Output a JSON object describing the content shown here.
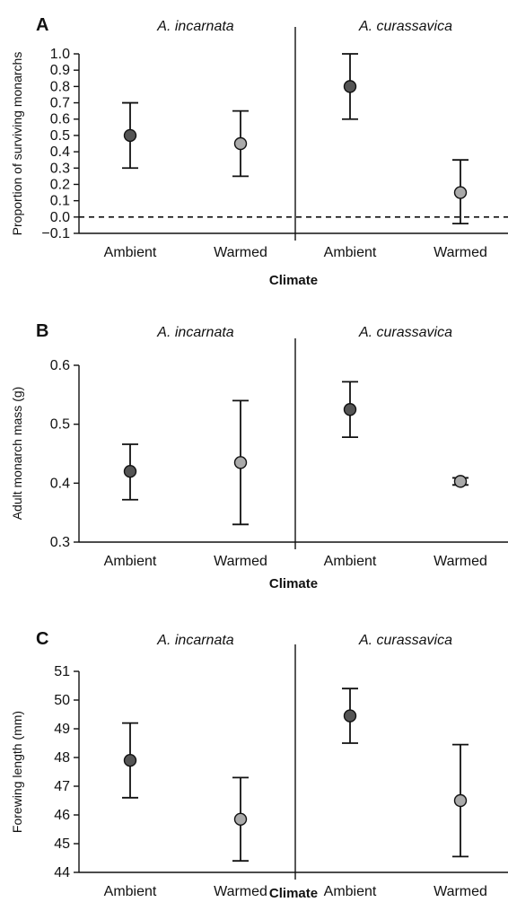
{
  "chart_data": [
    {
      "type": "scatter",
      "panel_label": "A",
      "group_labels": [
        "A. incarnata",
        "A. curassavica"
      ],
      "categories": [
        "Ambient",
        "Warmed",
        "Ambient",
        "Warmed"
      ],
      "xlabel": "Climate",
      "ylabel": "Proportion of surviving monarchs",
      "ylim": [
        -0.1,
        1.0
      ],
      "yticks": [
        "1.0",
        "0.9",
        "0.8",
        "0.7",
        "0.6",
        "0.5",
        "0.4",
        "0.3",
        "0.2",
        "0.1",
        "0.0",
        "−0.1"
      ],
      "ytick_values": [
        1.0,
        0.9,
        0.8,
        0.7,
        0.6,
        0.5,
        0.4,
        0.3,
        0.2,
        0.1,
        0.0,
        -0.1
      ],
      "reference_line": 0.0,
      "points": [
        {
          "mean": 0.5,
          "lower": 0.3,
          "upper": 0.7,
          "fill": "#555555"
        },
        {
          "mean": 0.45,
          "lower": 0.25,
          "upper": 0.65,
          "fill": "#aaaaaa"
        },
        {
          "mean": 0.8,
          "lower": 0.6,
          "upper": 1.0,
          "fill": "#555555"
        },
        {
          "mean": 0.15,
          "lower": -0.04,
          "upper": 0.35,
          "fill": "#aaaaaa"
        }
      ]
    },
    {
      "type": "scatter",
      "panel_label": "B",
      "group_labels": [
        "A. incarnata",
        "A. curassavica"
      ],
      "categories": [
        "Ambient",
        "Warmed",
        "Ambient",
        "Warmed"
      ],
      "xlabel": "Climate",
      "ylabel": "Adult monarch mass (g)",
      "ylim": [
        0.3,
        0.6
      ],
      "yticks": [
        "0.6",
        "0.5",
        "0.4",
        "0.3"
      ],
      "ytick_values": [
        0.6,
        0.5,
        0.4,
        0.3
      ],
      "points": [
        {
          "mean": 0.42,
          "lower": 0.372,
          "upper": 0.466,
          "fill": "#555555"
        },
        {
          "mean": 0.435,
          "lower": 0.33,
          "upper": 0.54,
          "fill": "#aaaaaa"
        },
        {
          "mean": 0.525,
          "lower": 0.478,
          "upper": 0.572,
          "fill": "#555555"
        },
        {
          "mean": 0.403,
          "lower": 0.397,
          "upper": 0.409,
          "fill": "#aaaaaa"
        }
      ]
    },
    {
      "type": "scatter",
      "panel_label": "C",
      "group_labels": [
        "A. incarnata",
        "A. curassavica"
      ],
      "categories": [
        "Ambient",
        "Warmed",
        "Ambient",
        "Warmed"
      ],
      "xlabel": "Climate",
      "ylabel": "Forewing length (mm)",
      "ylim": [
        44,
        51
      ],
      "yticks": [
        "51",
        "50",
        "49",
        "48",
        "47",
        "46",
        "45",
        "44"
      ],
      "ytick_values": [
        51,
        50,
        49,
        48,
        47,
        46,
        45,
        44
      ],
      "points": [
        {
          "mean": 47.9,
          "lower": 46.6,
          "upper": 49.2,
          "fill": "#555555"
        },
        {
          "mean": 45.85,
          "lower": 44.4,
          "upper": 47.3,
          "fill": "#aaaaaa"
        },
        {
          "mean": 49.45,
          "lower": 48.5,
          "upper": 50.4,
          "fill": "#555555"
        },
        {
          "mean": 46.5,
          "lower": 44.55,
          "upper": 48.45,
          "fill": "#aaaaaa"
        }
      ]
    }
  ]
}
